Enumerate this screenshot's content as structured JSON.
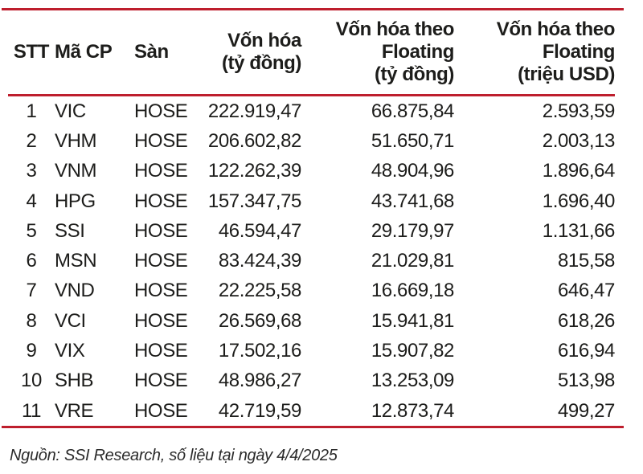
{
  "colors": {
    "accent_red": "#be1e2d",
    "text": "#1d1d1b"
  },
  "table": {
    "columns": [
      {
        "key": "stt",
        "label": "STT",
        "align": "center"
      },
      {
        "key": "ticker",
        "label": "Mã CP",
        "align": "left"
      },
      {
        "key": "exchange",
        "label": "Sàn",
        "align": "left"
      },
      {
        "key": "market_cap",
        "label": "Vốn hóa\n(tỷ đồng)",
        "align": "right"
      },
      {
        "key": "floating_cap_vnd",
        "label": "Vốn hóa theo\nFloating\n(tỷ đồng)",
        "align": "right"
      },
      {
        "key": "floating_cap_usd",
        "label": "Vốn hóa theo\nFloating\n(triệu USD)",
        "align": "right"
      }
    ],
    "rows": [
      {
        "stt": "1",
        "ticker": "VIC",
        "exchange": "HOSE",
        "market_cap": "222.919,47",
        "floating_cap_vnd": "66.875,84",
        "floating_cap_usd": "2.593,59"
      },
      {
        "stt": "2",
        "ticker": "VHM",
        "exchange": "HOSE",
        "market_cap": "206.602,82",
        "floating_cap_vnd": "51.650,71",
        "floating_cap_usd": "2.003,13"
      },
      {
        "stt": "3",
        "ticker": "VNM",
        "exchange": "HOSE",
        "market_cap": "122.262,39",
        "floating_cap_vnd": "48.904,96",
        "floating_cap_usd": "1.896,64"
      },
      {
        "stt": "4",
        "ticker": "HPG",
        "exchange": "HOSE",
        "market_cap": "157.347,75",
        "floating_cap_vnd": "43.741,68",
        "floating_cap_usd": "1.696,40"
      },
      {
        "stt": "5",
        "ticker": "SSI",
        "exchange": "HOSE",
        "market_cap": "46.594,47",
        "floating_cap_vnd": "29.179,97",
        "floating_cap_usd": "1.131,66"
      },
      {
        "stt": "6",
        "ticker": "MSN",
        "exchange": "HOSE",
        "market_cap": "83.424,39",
        "floating_cap_vnd": "21.029,81",
        "floating_cap_usd": "815,58"
      },
      {
        "stt": "7",
        "ticker": "VND",
        "exchange": "HOSE",
        "market_cap": "22.225,58",
        "floating_cap_vnd": "16.669,18",
        "floating_cap_usd": "646,47"
      },
      {
        "stt": "8",
        "ticker": "VCI",
        "exchange": "HOSE",
        "market_cap": "26.569,68",
        "floating_cap_vnd": "15.941,81",
        "floating_cap_usd": "618,26"
      },
      {
        "stt": "9",
        "ticker": "VIX",
        "exchange": "HOSE",
        "market_cap": "17.502,16",
        "floating_cap_vnd": "15.907,82",
        "floating_cap_usd": "616,94"
      },
      {
        "stt": "10",
        "ticker": "SHB",
        "exchange": "HOSE",
        "market_cap": "48.986,27",
        "floating_cap_vnd": "13.253,09",
        "floating_cap_usd": "513,98"
      },
      {
        "stt": "11",
        "ticker": "VRE",
        "exchange": "HOSE",
        "market_cap": "42.719,59",
        "floating_cap_vnd": "12.873,74",
        "floating_cap_usd": "499,27"
      }
    ]
  },
  "footer": {
    "source": "Nguồn: SSI Research, số liệu tại ngày 4/4/2025"
  },
  "chart_data": {
    "type": "table",
    "columns": [
      "STT",
      "Mã CP",
      "Sàn",
      "Vốn hóa (tỷ đồng)",
      "Vốn hóa theo Floating (tỷ đồng)",
      "Vốn hóa theo Floating (triệu USD)"
    ],
    "rows": [
      [
        "1",
        "VIC",
        "HOSE",
        "222.919,47",
        "66.875,84",
        "2.593,59"
      ],
      [
        "2",
        "VHM",
        "HOSE",
        "206.602,82",
        "51.650,71",
        "2.003,13"
      ],
      [
        "3",
        "VNM",
        "HOSE",
        "122.262,39",
        "48.904,96",
        "1.896,64"
      ],
      [
        "4",
        "HPG",
        "HOSE",
        "157.347,75",
        "43.741,68",
        "1.696,40"
      ],
      [
        "5",
        "SSI",
        "HOSE",
        "46.594,47",
        "29.179,97",
        "1.131,66"
      ],
      [
        "6",
        "MSN",
        "HOSE",
        "83.424,39",
        "21.029,81",
        "815,58"
      ],
      [
        "7",
        "VND",
        "HOSE",
        "22.225,58",
        "16.669,18",
        "646,47"
      ],
      [
        "8",
        "VCI",
        "HOSE",
        "26.569,68",
        "15.941,81",
        "618,26"
      ],
      [
        "9",
        "VIX",
        "HOSE",
        "17.502,16",
        "15.907,82",
        "616,94"
      ],
      [
        "10",
        "SHB",
        "HOSE",
        "48.986,27",
        "13.253,09",
        "513,98"
      ],
      [
        "11",
        "VRE",
        "HOSE",
        "42.719,59",
        "12.873,74",
        "499,27"
      ]
    ],
    "source": "Nguồn: SSI Research, số liệu tại ngày 4/4/2025"
  }
}
